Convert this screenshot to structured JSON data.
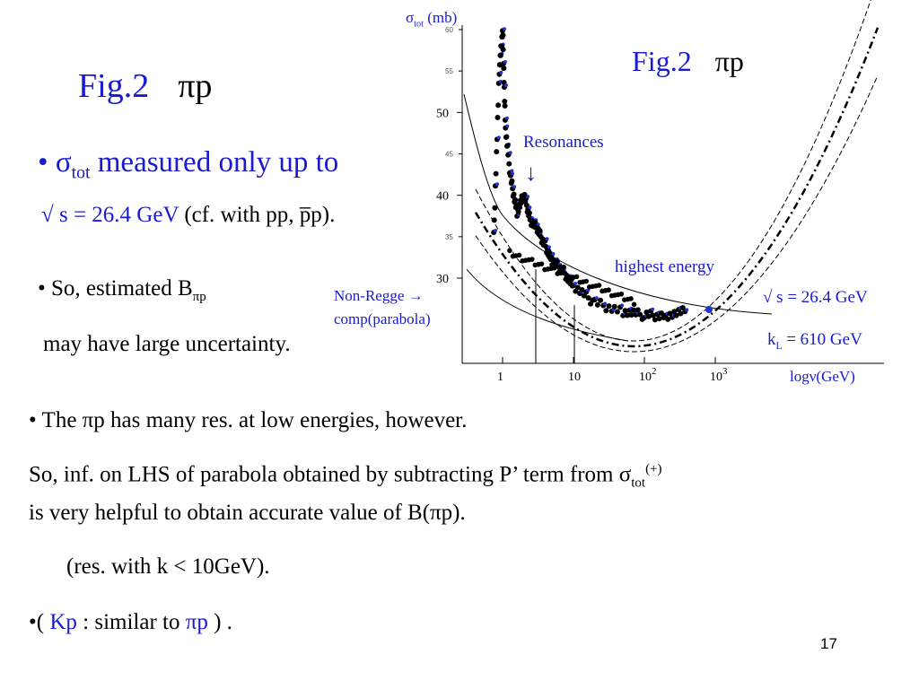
{
  "slide": {
    "left_title": {
      "fig": "Fig.2",
      "reaction": "πp"
    },
    "bullet1": {
      "sigma": "σ",
      "sub": "tot",
      "text": " measured only up to"
    },
    "bullet1b": {
      "sqrt_s": "√ s = 26.4 GeV",
      "rest": " (cf. with pp, p̅p)."
    },
    "bullet2": {
      "text": "• So, estimated B",
      "sub": "πp"
    },
    "bullet2b": "may have large uncertainty.",
    "line3": "• The πp has many res. at low energies, however.",
    "line4": {
      "text": "So, inf. on LHS of parabola obtained by subtracting P’ term from σ",
      "sub": "tot",
      "sup": "(+)"
    },
    "line5": "is very helpful to obtain accurate value of B(πp).",
    "line6": "(res. with k < 10GeV).",
    "line7": {
      "pre": "•( ",
      "kp": "Kp",
      "mid": " : similar to ",
      "pip": "πp",
      "post": " )     ."
    },
    "page_number": "17"
  },
  "figure": {
    "title": "Fig.2",
    "reaction": "πp",
    "y_axis_label": {
      "sigma": "σ",
      "sub": "tot",
      "unit": " (mb)"
    },
    "y_ticks_small": [
      "60",
      "55",
      "45",
      "35"
    ],
    "y_ticks_big": [
      "50",
      "40",
      "30"
    ],
    "x_ticks": [
      "1",
      "10",
      "10",
      "10"
    ],
    "x_tick_sups": [
      "",
      "",
      "2",
      "3"
    ],
    "x_axis_label": "logν(GeV)",
    "annotations": {
      "resonances": "Resonances",
      "resonance_arrow": "↓",
      "highest_energy": "highest energy",
      "sqrt_s": "√ s = 26.4 GeV",
      "kL": "k",
      "kL_sub": "L",
      "kL_value": " = 610 GeV",
      "non_regge_1": "Non-Regge  →",
      "non_regge_2": "comp(parabola)"
    },
    "colors": {
      "annotation": "#1a1ad0",
      "data_points": "#000000",
      "fit_points": "#2233cc"
    }
  },
  "chart_data": {
    "type": "scatter",
    "title": "Fig.2 πp",
    "xlabel": "logν(GeV)",
    "ylabel": "σtot (mb)",
    "x_scale": "log",
    "ylim": [
      25,
      60
    ],
    "series": [
      {
        "x": [
          0.75,
          0.9,
          1.0,
          1.1,
          1.3,
          1.6,
          2.0,
          2.5,
          3.0,
          4.0,
          5.0,
          7.0,
          10,
          20,
          50,
          100,
          200,
          400
        ],
        "y": [
          35,
          55,
          60,
          48,
          42,
          38,
          40,
          37,
          36,
          34,
          32,
          31,
          29,
          27,
          26,
          25.5,
          25.5,
          26
        ]
      }
    ]
  }
}
